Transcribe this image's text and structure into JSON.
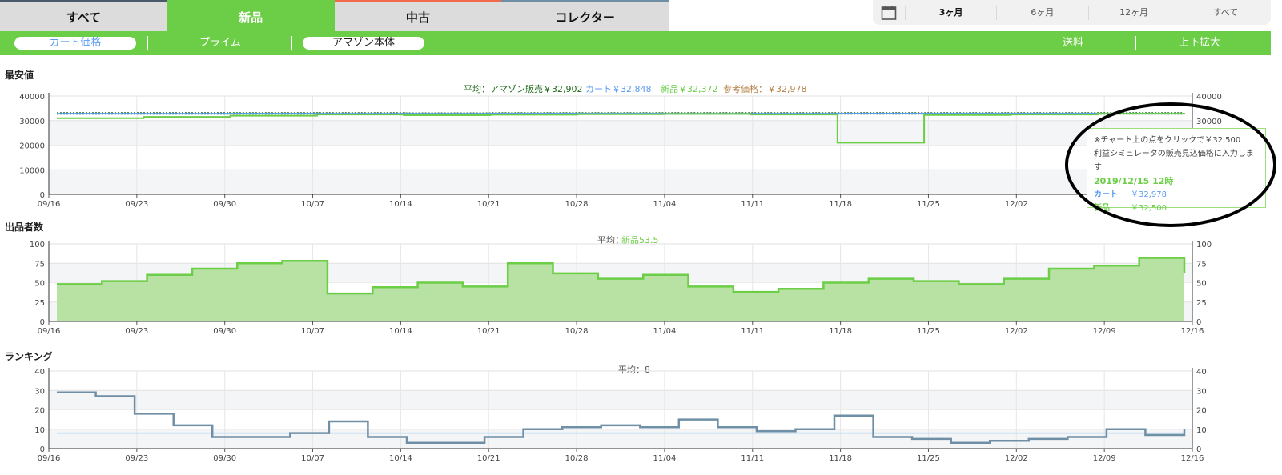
{
  "tabs": [
    {
      "label": "すべて",
      "active": false
    },
    {
      "label": "新品",
      "active": true
    },
    {
      "label": "中古",
      "active": false
    },
    {
      "label": "コレクター",
      "active": false
    }
  ],
  "range": {
    "icon": "calendar-icon",
    "options": [
      "3ヶ月",
      "6ヶ月",
      "12ヶ月",
      "すべて"
    ],
    "selected": "3ヶ月"
  },
  "subnav": {
    "cart": "カート価格",
    "prime": "プライム",
    "amazon": "アマゾン本体",
    "shipping": "送料",
    "zoom": "上下拡大"
  },
  "colors": {
    "green": "#6ccd47",
    "blue": "#5b9cf0",
    "darkgreen": "#1f6b1a",
    "orange": "#b5824a",
    "slate": "#6f8fa6"
  },
  "price_chart": {
    "title": "最安値",
    "avg_amazon": "平均：アマゾン販売￥32,902",
    "avg_cart": "カート￥32,848",
    "avg_new": "新品￥32,372",
    "avg_ref": "参考価格：￥32,978",
    "chart_data": {
      "type": "line",
      "yticks": [
        "0",
        "10000",
        "20000",
        "30000",
        "40000"
      ],
      "ylim": [
        0,
        40000
      ],
      "xticks": [
        "09/16",
        "09/23",
        "09/30",
        "10/07",
        "10/14",
        "10/21",
        "10/28",
        "11/04",
        "11/11",
        "11/18",
        "11/25",
        "12/02",
        "12/09",
        "12/16"
      ],
      "series": [
        {
          "values": [
            32900,
            32900,
            32950,
            32900,
            32850,
            32900,
            32900,
            32950,
            32900,
            32900,
            32900,
            32900,
            32900,
            32900
          ]
        },
        {
          "values": [
            32800,
            32800,
            32850,
            32800,
            32800,
            32850,
            32850,
            32800,
            32800,
            32850,
            32850,
            32850,
            32850,
            32850
          ]
        },
        {
          "values": [
            31000,
            31500,
            32000,
            32500,
            32200,
            32400,
            32600,
            32700,
            32500,
            21000,
            32300,
            32500,
            32800,
            32500
          ]
        }
      ]
    }
  },
  "sellers_chart": {
    "title": "出品者数",
    "avg": "平均：",
    "avg_value": "新品53.5",
    "chart_data": {
      "type": "area",
      "yticks": [
        "0",
        "25",
        "50",
        "75",
        "100"
      ],
      "ylim": [
        0,
        100
      ],
      "xticks": [
        "09/16",
        "09/23",
        "09/30",
        "10/07",
        "10/14",
        "10/21",
        "10/28",
        "11/04",
        "11/11",
        "11/18",
        "11/25",
        "12/02",
        "12/09",
        "12/16"
      ],
      "values": [
        48,
        52,
        60,
        68,
        75,
        78,
        36,
        44,
        50,
        45,
        75,
        62,
        55,
        60,
        45,
        38,
        42,
        50,
        55,
        52,
        48,
        55,
        68,
        72,
        82,
        62
      ]
    }
  },
  "ranking_chart": {
    "title": "ランキング",
    "avg": "平均：8",
    "chart_data": {
      "type": "line",
      "yticks": [
        "0",
        "10",
        "20",
        "30",
        "40"
      ],
      "ylim": [
        0,
        40
      ],
      "xticks": [
        "09/16",
        "09/23",
        "09/30",
        "10/07",
        "10/14",
        "10/21",
        "10/28",
        "11/04",
        "11/11",
        "11/18",
        "11/25",
        "12/02",
        "12/09",
        "12/16"
      ],
      "values": [
        29,
        27,
        18,
        12,
        6,
        6,
        8,
        14,
        6,
        3,
        3,
        6,
        10,
        11,
        12,
        11,
        15,
        11,
        9,
        10,
        17,
        6,
        5,
        3,
        4,
        5,
        6,
        10,
        7,
        10
      ],
      "average": 8
    }
  },
  "tooltip": {
    "hint1": "※チャート上の点をクリックで￥32,500",
    "hint2": "利益シミュレータの販売見込価格に入力します",
    "datetime": "2019/12/15 12時",
    "cart_label": "カート",
    "cart_value": "￥32,978",
    "new_label": "新品",
    "new_value": "￥32,500"
  }
}
